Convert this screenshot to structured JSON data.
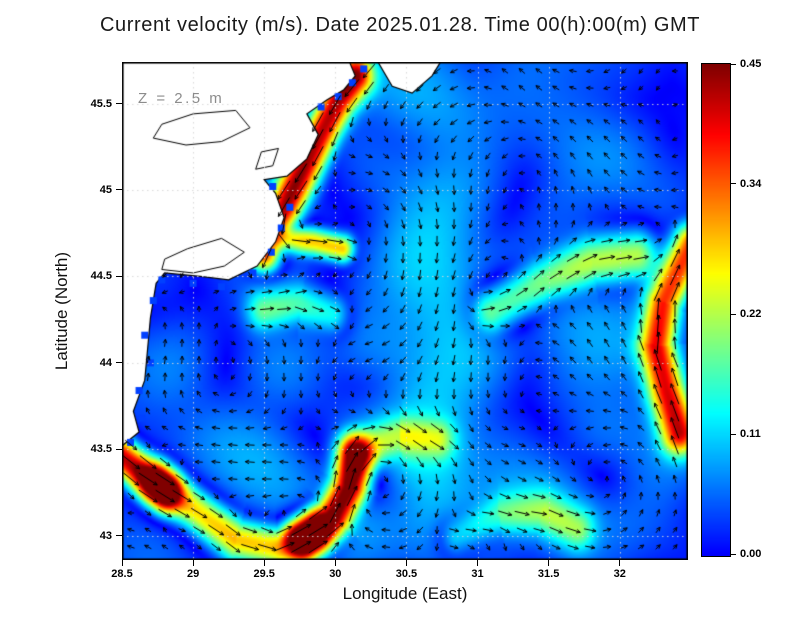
{
  "chart_data": {
    "type": "heatmap",
    "subtype": "ocean-current-vector-field",
    "title": "Current velocity (m/s). Date 2025.01.28. Time 00(h):00(m) GMT",
    "annotation": "Z = 2.5 m",
    "xlabel": "Longitude (East)",
    "ylabel": "Latitude (North)",
    "units": "m/s",
    "xlim": [
      28.5,
      32.48
    ],
    "ylim": [
      42.86,
      45.74
    ],
    "x_ticks": [
      28.5,
      29,
      29.5,
      30,
      30.5,
      31,
      31.5,
      32
    ],
    "x_tick_labels": [
      "28.5",
      "29",
      "29.5",
      "30",
      "30.5",
      "31",
      "31.5",
      "32"
    ],
    "y_ticks": [
      43,
      43.5,
      44,
      44.5,
      45,
      45.5
    ],
    "y_tick_labels": [
      "43",
      "43.5",
      "44",
      "44.5",
      "45",
      "45.5"
    ],
    "grid": true,
    "colorbar": {
      "min": 0,
      "max": 0.45,
      "ticks": [
        0,
        0.11,
        0.22,
        0.34,
        0.45
      ],
      "labels": [
        "0.00",
        "0.11",
        "0.22",
        "0.34",
        "0.45"
      ],
      "colormap": "jet"
    },
    "base_flow": {
      "u": -0.018,
      "v": -0.008
    },
    "texture": {
      "a1": 0.016,
      "a2": 0.012
    },
    "jets": [
      {
        "name": "nw-coastal-jet",
        "path": [
          [
            30.14,
            45.66
          ],
          [
            30.02,
            45.52
          ],
          [
            29.92,
            45.36
          ],
          [
            29.8,
            45.16
          ],
          [
            29.68,
            44.96
          ],
          [
            29.58,
            44.78
          ],
          [
            29.5,
            44.64
          ]
        ],
        "width": 0.085,
        "peak": 0.42
      },
      {
        "name": "cape-band",
        "path": [
          [
            29.6,
            44.73
          ],
          [
            29.85,
            44.7
          ],
          [
            30.05,
            44.66
          ]
        ],
        "width": 0.06,
        "peak": 0.3
      },
      {
        "name": "sw-coastal-jet",
        "path": [
          [
            28.5,
            43.46
          ],
          [
            28.64,
            43.36
          ],
          [
            28.8,
            43.26
          ]
        ],
        "width": 0.08,
        "peak": 0.44
      },
      {
        "name": "south-band",
        "path": [
          [
            28.76,
            43.3
          ],
          [
            29.0,
            43.16
          ],
          [
            29.3,
            42.98
          ],
          [
            29.6,
            42.93
          ],
          [
            29.85,
            43.02
          ]
        ],
        "width": 0.09,
        "peak": 0.3
      },
      {
        "name": "south-jet-core",
        "path": [
          [
            29.78,
            42.97
          ],
          [
            29.98,
            43.1
          ],
          [
            30.1,
            43.28
          ],
          [
            30.15,
            43.46
          ]
        ],
        "width": 0.09,
        "peak": 0.46
      },
      {
        "name": "east-boundary-jet",
        "path": [
          [
            32.42,
            43.6
          ],
          [
            32.33,
            43.84
          ],
          [
            32.26,
            44.1
          ],
          [
            32.31,
            44.35
          ],
          [
            32.43,
            44.56
          ],
          [
            32.5,
            44.68
          ]
        ],
        "width": 0.09,
        "peak": 0.36
      },
      {
        "name": "central-diagonal-band",
        "path": [
          [
            31.1,
            44.3
          ],
          [
            31.45,
            44.46
          ],
          [
            31.8,
            44.58
          ],
          [
            32.12,
            44.62
          ]
        ],
        "width": 0.11,
        "peak": 0.24
      },
      {
        "name": "mid-south-band",
        "path": [
          [
            30.15,
            43.48
          ],
          [
            30.45,
            43.58
          ],
          [
            30.72,
            43.56
          ]
        ],
        "width": 0.09,
        "peak": 0.18
      },
      {
        "name": "south-east-arc",
        "path": [
          [
            30.85,
            43.0
          ],
          [
            31.15,
            43.12
          ],
          [
            31.45,
            43.14
          ],
          [
            31.7,
            43.04
          ]
        ],
        "width": 0.09,
        "peak": 0.15
      },
      {
        "name": "offshore-band",
        "path": [
          [
            29.5,
            44.3
          ],
          [
            29.75,
            44.34
          ],
          [
            29.98,
            44.28
          ]
        ],
        "width": 0.09,
        "peak": 0.16
      }
    ],
    "eddies": [
      {
        "center": [
          30.35,
          43.32
        ],
        "radius": 0.33,
        "rotation": -1,
        "strength": 0.07
      },
      {
        "center": [
          31.25,
          43.95
        ],
        "radius": 0.55,
        "rotation": 1,
        "strength": 0.06
      },
      {
        "center": [
          31.05,
          45.15
        ],
        "radius": 0.5,
        "rotation": 1,
        "strength": 0.05
      },
      {
        "center": [
          29.3,
          43.85
        ],
        "radius": 0.45,
        "rotation": -1,
        "strength": 0.05
      },
      {
        "center": [
          32.0,
          43.35
        ],
        "radius": 0.4,
        "rotation": 1,
        "strength": 0.05
      },
      {
        "center": [
          30.4,
          44.6
        ],
        "radius": 0.45,
        "rotation": -1,
        "strength": 0.045
      }
    ],
    "coast": {
      "land": [
        [
          28.5,
          45.74
        ],
        [
          28.5,
          43.52
        ],
        [
          28.62,
          43.6
        ],
        [
          28.58,
          43.72
        ],
        [
          28.66,
          43.9
        ],
        [
          28.68,
          44.08
        ],
        [
          28.7,
          44.26
        ],
        [
          28.74,
          44.46
        ],
        [
          28.8,
          44.52
        ],
        [
          29.05,
          44.5
        ],
        [
          29.25,
          44.48
        ],
        [
          29.45,
          44.56
        ],
        [
          29.58,
          44.7
        ],
        [
          29.64,
          44.84
        ],
        [
          29.58,
          44.98
        ],
        [
          29.5,
          45.06
        ],
        [
          29.66,
          45.08
        ],
        [
          29.8,
          45.18
        ],
        [
          29.88,
          45.32
        ],
        [
          29.8,
          45.44
        ],
        [
          29.94,
          45.52
        ],
        [
          30.06,
          45.58
        ],
        [
          30.14,
          45.66
        ],
        [
          30.1,
          45.74
        ]
      ],
      "wedge": [
        [
          30.3,
          45.74
        ],
        [
          30.4,
          45.6
        ],
        [
          30.54,
          45.56
        ],
        [
          30.68,
          45.66
        ],
        [
          30.74,
          45.74
        ]
      ],
      "lakes": [
        [
          [
            28.72,
            45.3
          ],
          [
            28.95,
            45.26
          ],
          [
            29.2,
            45.28
          ],
          [
            29.4,
            45.36
          ],
          [
            29.3,
            45.46
          ],
          [
            29.0,
            45.44
          ],
          [
            28.78,
            45.38
          ]
        ],
        [
          [
            28.78,
            44.54
          ],
          [
            29.0,
            44.52
          ],
          [
            29.22,
            44.56
          ],
          [
            29.36,
            44.64
          ],
          [
            29.2,
            44.72
          ],
          [
            28.96,
            44.66
          ],
          [
            28.8,
            44.6
          ]
        ],
        [
          [
            29.44,
            45.12
          ],
          [
            29.56,
            45.14
          ],
          [
            29.6,
            45.24
          ],
          [
            29.48,
            45.22
          ]
        ]
      ],
      "squares": [
        [
          28.56,
          43.54
        ],
        [
          28.64,
          43.68
        ],
        [
          28.62,
          43.84
        ],
        [
          28.7,
          44.0
        ],
        [
          28.66,
          44.16
        ],
        [
          28.72,
          44.36
        ],
        [
          28.78,
          44.48
        ],
        [
          29.0,
          44.46
        ],
        [
          29.2,
          44.44
        ],
        [
          29.42,
          44.52
        ],
        [
          29.55,
          44.64
        ],
        [
          29.62,
          44.78
        ],
        [
          29.68,
          44.9
        ],
        [
          29.56,
          45.02
        ],
        [
          29.9,
          45.48
        ],
        [
          30.02,
          45.54
        ],
        [
          30.12,
          45.62
        ],
        [
          30.2,
          45.7
        ]
      ]
    },
    "style": {
      "land_color": "#ffffff",
      "coast_color": "#000000",
      "arrow_color": "#000000",
      "grid_color": "#d9d9d9",
      "square_color": "#0040ff",
      "annotation_color": "#8c8c8c",
      "frame_color": "#000000"
    }
  }
}
